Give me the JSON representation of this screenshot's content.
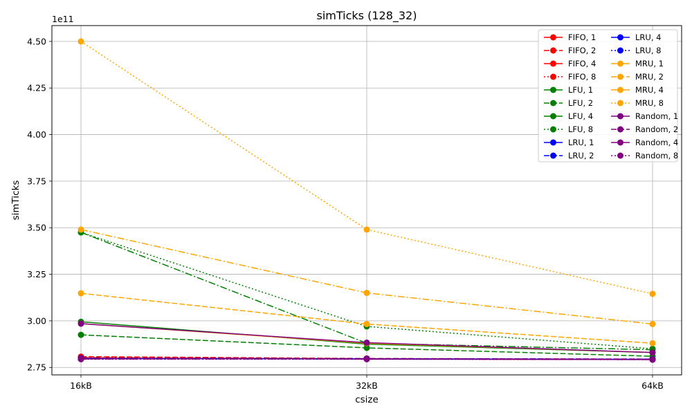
{
  "chart_data": {
    "type": "line",
    "title": "simTicks (128_32)",
    "xlabel": "csize",
    "ylabel": "simTicks",
    "y_multiplier": "1e11",
    "categories": [
      "16kB",
      "32kB",
      "64kB"
    ],
    "ylim": [
      2.71,
      4.585
    ],
    "yticks": [
      2.75,
      3.0,
      3.25,
      3.5,
      3.75,
      4.0,
      4.25,
      4.5
    ],
    "ytick_labels": [
      "2.75",
      "3.00",
      "3.25",
      "3.50",
      "3.75",
      "4.00",
      "4.25",
      "4.50"
    ],
    "grid": true,
    "legend": {
      "placement": "top-right",
      "columns": 2
    },
    "colors": {
      "FIFO": "#ff0000",
      "LFU": "#008000",
      "LRU": "#0000ff",
      "MRU": "#ffa500",
      "Random": "#800080"
    },
    "series": [
      {
        "name": "FIFO, 1",
        "policy": "FIFO",
        "style": "solid",
        "values": [
          2.8,
          2.795,
          2.792
        ]
      },
      {
        "name": "FIFO, 2",
        "policy": "FIFO",
        "style": "dashed",
        "values": [
          2.808,
          2.798,
          2.795
        ]
      },
      {
        "name": "FIFO, 4",
        "policy": "FIFO",
        "style": "dashdot",
        "values": [
          2.803,
          2.797,
          2.794
        ]
      },
      {
        "name": "FIFO, 8",
        "policy": "FIFO",
        "style": "dotted",
        "values": [
          2.801,
          2.796,
          2.793
        ]
      },
      {
        "name": "LFU, 1",
        "policy": "LFU",
        "style": "solid",
        "values": [
          2.995,
          2.875,
          2.83
        ]
      },
      {
        "name": "LFU, 2",
        "policy": "LFU",
        "style": "dashed",
        "values": [
          2.925,
          2.855,
          2.81
        ]
      },
      {
        "name": "LFU, 4",
        "policy": "LFU",
        "style": "dashdot",
        "values": [
          3.475,
          2.88,
          2.845
        ]
      },
      {
        "name": "LFU, 8",
        "policy": "LFU",
        "style": "dotted",
        "values": [
          3.475,
          2.97,
          2.85
        ]
      },
      {
        "name": "LRU, 1",
        "policy": "LRU",
        "style": "solid",
        "values": [
          2.797,
          2.796,
          2.793
        ]
      },
      {
        "name": "LRU, 2",
        "policy": "LRU",
        "style": "dashed",
        "values": [
          2.799,
          2.797,
          2.794
        ]
      },
      {
        "name": "LRU, 4",
        "policy": "LRU",
        "style": "dashdot",
        "values": [
          2.798,
          2.796,
          2.794
        ]
      },
      {
        "name": "LRU, 8",
        "policy": "LRU",
        "style": "dotted",
        "values": [
          2.797,
          2.795,
          2.793
        ]
      },
      {
        "name": "MRU, 1",
        "policy": "MRU",
        "style": "solid",
        "values": [
          2.985,
          2.88,
          2.83
        ]
      },
      {
        "name": "MRU, 2",
        "policy": "MRU",
        "style": "dashed",
        "values": [
          3.148,
          2.983,
          2.88
        ]
      },
      {
        "name": "MRU, 4",
        "policy": "MRU",
        "style": "dashdot",
        "values": [
          3.49,
          3.15,
          2.983
        ]
      },
      {
        "name": "MRU, 8",
        "policy": "MRU",
        "style": "dotted",
        "values": [
          4.5,
          3.49,
          3.145
        ]
      },
      {
        "name": "Random, 1",
        "policy": "Random",
        "style": "solid",
        "values": [
          2.985,
          2.883,
          2.83
        ]
      },
      {
        "name": "Random, 2",
        "policy": "Random",
        "style": "dashed",
        "values": [
          2.797,
          2.796,
          2.793
        ]
      },
      {
        "name": "Random, 4",
        "policy": "Random",
        "style": "dashdot",
        "values": [
          2.795,
          2.795,
          2.792
        ]
      },
      {
        "name": "Random, 8",
        "policy": "Random",
        "style": "dotted",
        "values": [
          2.794,
          2.794,
          2.792
        ]
      }
    ]
  }
}
